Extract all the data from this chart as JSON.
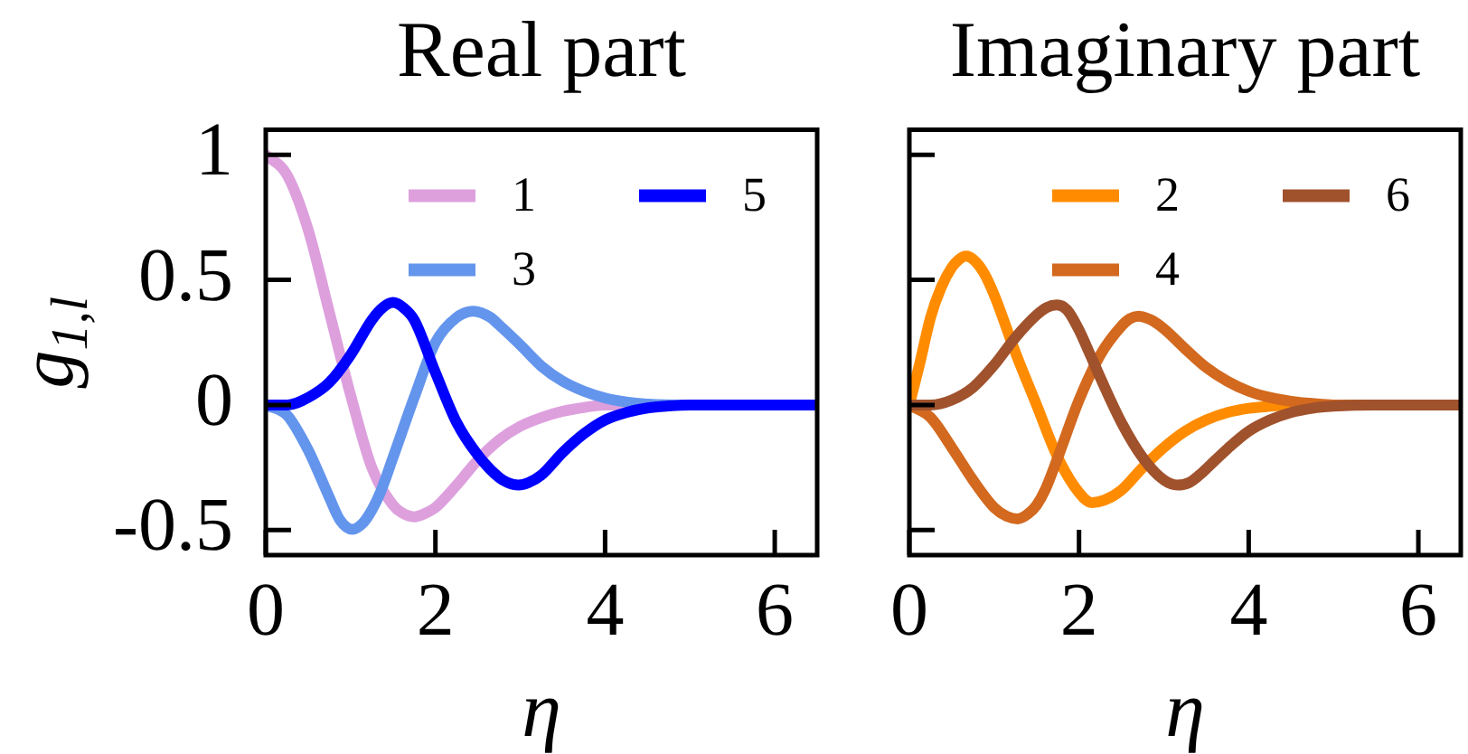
{
  "chart_data": [
    {
      "type": "line",
      "title": "Real part",
      "xlabel": "η",
      "ylabel": "g$_{1,l}$",
      "xlim": [
        0,
        6.5
      ],
      "ylim": [
        -0.6,
        1.1
      ],
      "xticks": [
        0,
        2,
        4,
        6
      ],
      "yticks": [
        -0.5,
        0,
        0.5,
        1
      ],
      "legend": "top right",
      "series": [
        {
          "name": "1",
          "color": "#dda0dd",
          "x": [
            0,
            0.25,
            0.5,
            0.75,
            1,
            1.25,
            1.5,
            1.6,
            1.75,
            1.9,
            2,
            2.25,
            2.5,
            2.75,
            3,
            3.25,
            3.5,
            3.75,
            4,
            4.5,
            5,
            5.5
          ],
          "values": [
            1,
            0.92,
            0.7,
            0.37,
            0.04,
            -0.25,
            -0.4,
            -0.43,
            -0.447,
            -0.43,
            -0.41,
            -0.32,
            -0.22,
            -0.14,
            -0.085,
            -0.05,
            -0.025,
            -0.01,
            0,
            0,
            0,
            0
          ]
        },
        {
          "name": "3",
          "color": "#6495ed",
          "x": [
            0,
            0.25,
            0.5,
            0.75,
            0.875,
            1.02,
            1.15,
            1.25,
            1.35,
            1.5,
            1.75,
            2,
            2.25,
            2.45,
            2.65,
            2.75,
            3,
            3.25,
            3.5,
            3.75,
            4,
            4.25,
            4.5,
            5,
            5.5
          ],
          "values": [
            0,
            -0.04,
            -0.18,
            -0.37,
            -0.46,
            -0.497,
            -0.47,
            -0.42,
            -0.35,
            -0.21,
            0.03,
            0.25,
            0.35,
            0.375,
            0.35,
            0.32,
            0.24,
            0.155,
            0.095,
            0.055,
            0.028,
            0.012,
            0.004,
            0,
            0
          ]
        },
        {
          "name": "5",
          "color": "#0000ff",
          "x": [
            0,
            0.25,
            0.5,
            0.75,
            1,
            1.25,
            1.38,
            1.5,
            1.62,
            1.75,
            2,
            2.25,
            2.5,
            2.75,
            2.85,
            2.98,
            3.1,
            3.25,
            3.5,
            3.75,
            4,
            4.25,
            4.5,
            4.75,
            5,
            5.5,
            6,
            6.5
          ],
          "values": [
            0,
            0,
            0.03,
            0.09,
            0.2,
            0.34,
            0.39,
            0.41,
            0.39,
            0.34,
            0.13,
            -0.07,
            -0.2,
            -0.29,
            -0.31,
            -0.32,
            -0.31,
            -0.28,
            -0.19,
            -0.115,
            -0.06,
            -0.03,
            -0.012,
            -0.004,
            0,
            0,
            0,
            0
          ]
        }
      ]
    },
    {
      "type": "line",
      "title": "Imaginary part",
      "xlabel": "η",
      "xlim": [
        0,
        6.5
      ],
      "ylim": [
        -0.6,
        1.1
      ],
      "xticks": [
        0,
        2,
        4,
        6
      ],
      "yticks": [
        -0.5,
        0,
        0.5,
        1
      ],
      "legend": "top right",
      "tick_labels": "x",
      "series": [
        {
          "name": "2",
          "color": "#ff8c00",
          "x": [
            0,
            0.125,
            0.25,
            0.375,
            0.5,
            0.58,
            0.67,
            0.76,
            0.875,
            1,
            1.25,
            1.5,
            1.75,
            2,
            2.15,
            2.3,
            2.5,
            2.75,
            3,
            3.25,
            3.5,
            3.75,
            4,
            4.25,
            4.5,
            5,
            5.5
          ],
          "values": [
            0,
            0.17,
            0.35,
            0.47,
            0.55,
            0.58,
            0.595,
            0.58,
            0.53,
            0.44,
            0.21,
            0,
            -0.21,
            -0.35,
            -0.39,
            -0.38,
            -0.34,
            -0.25,
            -0.17,
            -0.105,
            -0.06,
            -0.03,
            -0.013,
            -0.005,
            0,
            0,
            0
          ]
        },
        {
          "name": "4",
          "color": "#d2691e",
          "x": [
            0,
            0.25,
            0.5,
            0.75,
            1,
            1.15,
            1.28,
            1.4,
            1.5,
            1.6,
            1.75,
            2,
            2.25,
            2.5,
            2.6,
            2.7,
            2.85,
            3,
            3.25,
            3.5,
            3.75,
            4,
            4.25,
            4.5,
            4.75,
            5,
            5.5
          ],
          "values": [
            0,
            -0.05,
            -0.17,
            -0.3,
            -0.41,
            -0.445,
            -0.455,
            -0.435,
            -0.4,
            -0.34,
            -0.21,
            0.02,
            0.2,
            0.315,
            0.345,
            0.355,
            0.34,
            0.305,
            0.225,
            0.15,
            0.095,
            0.055,
            0.03,
            0.015,
            0.006,
            0,
            0
          ]
        },
        {
          "name": "6",
          "color": "#a0522d",
          "x": [
            0,
            0.25,
            0.5,
            0.75,
            1,
            1.25,
            1.5,
            1.62,
            1.74,
            1.86,
            2,
            2.12,
            2.25,
            2.5,
            2.75,
            3,
            3.16,
            3.3,
            3.42,
            3.5,
            3.75,
            4,
            4.25,
            4.5,
            4.75,
            5,
            5.5,
            6,
            6.5
          ],
          "values": [
            0,
            0,
            0.02,
            0.07,
            0.16,
            0.27,
            0.36,
            0.39,
            0.4,
            0.38,
            0.3,
            0.21,
            0.11,
            -0.07,
            -0.21,
            -0.3,
            -0.32,
            -0.31,
            -0.28,
            -0.255,
            -0.175,
            -0.105,
            -0.06,
            -0.03,
            -0.013,
            -0.005,
            0,
            0,
            0
          ]
        }
      ]
    }
  ]
}
